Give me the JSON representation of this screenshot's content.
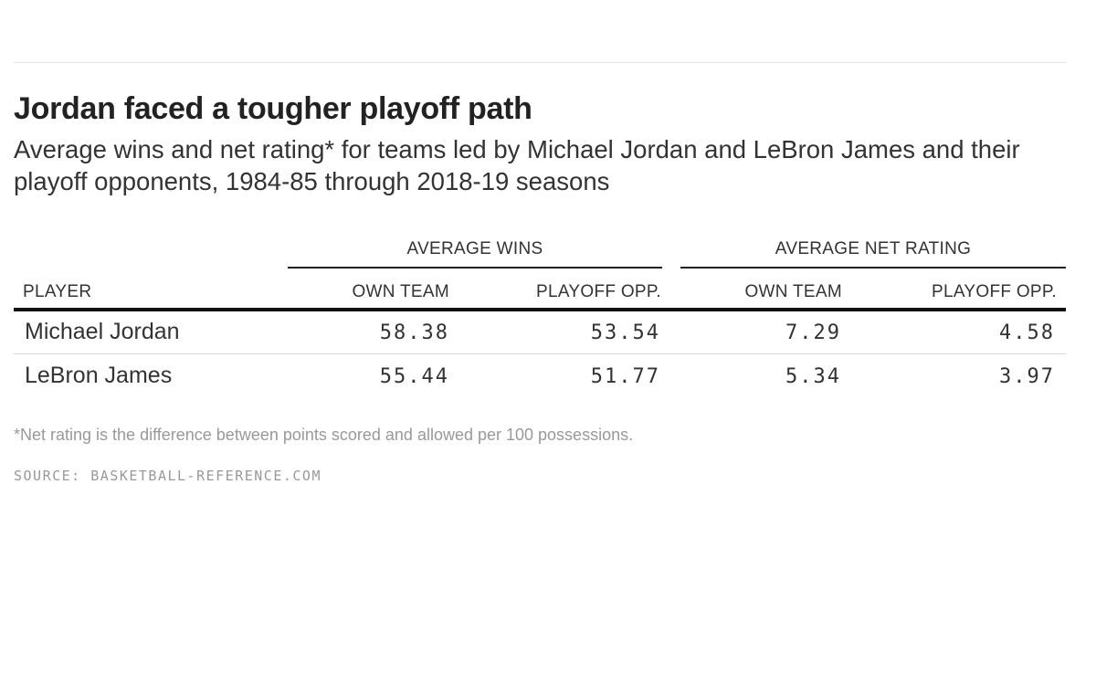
{
  "chart_data": {
    "type": "table",
    "title": "Jordan faced a tougher playoff path",
    "subtitle": "Average wins and net rating* for teams led by Michael Jordan and LeBron James and their playoff opponents, 1984-85 through 2018-19 seasons",
    "column_groups": [
      "AVERAGE WINS",
      "AVERAGE NET RATING"
    ],
    "columns": [
      "PLAYER",
      "OWN TEAM",
      "PLAYOFF OPP.",
      "OWN TEAM",
      "PLAYOFF OPP."
    ],
    "rows": [
      {
        "player": "Michael Jordan",
        "values": [
          "58.38",
          "53.54",
          "7.29",
          "4.58"
        ]
      },
      {
        "player": "LeBron James",
        "values": [
          "55.44",
          "51.77",
          "5.34",
          "3.97"
        ]
      }
    ],
    "footnote": "*Net rating is the difference between points scored and allowed per 100 possessions.",
    "source": "SOURCE: BASKETBALL-REFERENCE.COM"
  }
}
